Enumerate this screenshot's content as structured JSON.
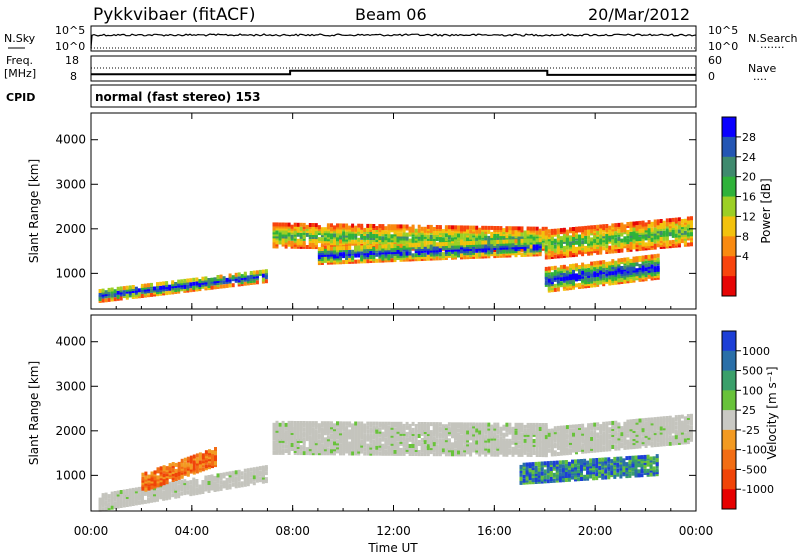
{
  "header": {
    "title": "Pykkvibaer (fitACF)",
    "beam": "Beam 06",
    "date": "20/Mar/2012"
  },
  "nsky_panel": {
    "left_label": "N.Sky",
    "left_ticks": [
      "10^5",
      "10^0"
    ],
    "right_ticks": [
      "10^5",
      "10^0"
    ],
    "right_label": "N.Search",
    "right_marker": "......."
  },
  "freq_panel": {
    "left_label_lines": [
      "Freq.",
      "[MHz]"
    ],
    "left_ticks": [
      "18",
      "8"
    ],
    "right_ticks": [
      "60",
      "0"
    ],
    "right_label": "Nave",
    "right_marker": "....",
    "freq_steps": [
      {
        "t": 0.0,
        "v": 10.5
      },
      {
        "t": 7.9,
        "v": 10.5
      },
      {
        "t": 7.9,
        "v": 12.0
      },
      {
        "t": 18.1,
        "v": 12.0
      },
      {
        "t": 18.1,
        "v": 10.2
      },
      {
        "t": 24.0,
        "v": 10.2
      }
    ]
  },
  "cpid_panel": {
    "label": "CPID",
    "text": "normal (fast stereo) 153"
  },
  "power_panel": {
    "ylabel": "Slant Range [km]",
    "yticks": [
      "4000",
      "3000",
      "2000",
      "1000"
    ],
    "colorbar_label": "Power [dB]",
    "colorbar_ticks": [
      "28",
      "24",
      "20",
      "16",
      "12",
      "8",
      "4"
    ],
    "colors": [
      "#0a00ff",
      "#2456b4",
      "#3f8a6e",
      "#2fb23a",
      "#9ccf25",
      "#f3c20d",
      "#f98a10",
      "#f8440d",
      "#e60505"
    ]
  },
  "velocity_panel": {
    "ylabel": "Slant Range [km]",
    "yticks": [
      "4000",
      "3000",
      "2000",
      "1000"
    ],
    "colorbar_label": "Velocity [m s⁻¹]",
    "colorbar_ticks": [
      "1000",
      "500",
      "100",
      "25",
      "-25",
      "-100",
      "-500",
      "-1000"
    ],
    "colors": [
      "#1d3fd6",
      "#2a6fa8",
      "#3a9f6a",
      "#68c23a",
      "#c9c9c4",
      "#f29a22",
      "#f26d14",
      "#f04408",
      "#e60000"
    ],
    "ground_scatter": "#c4c4bd"
  },
  "x_axis": {
    "xlabel": "Time UT",
    "ticks": [
      "00:00",
      "04:00",
      "08:00",
      "12:00",
      "16:00",
      "20:00",
      "00:00"
    ]
  },
  "chart_data": {
    "type": "heatmap",
    "title": "Pykkvibaer (fitACF)",
    "xlabel": "Time UT",
    "ylabel": "Slant Range [km]",
    "xlim": [
      0,
      24
    ],
    "ylim": [
      200,
      4600
    ],
    "power_colorbar": {
      "label": "Power [dB]",
      "range": [
        0,
        32
      ]
    },
    "velocity_colorbar": {
      "label": "Velocity [m s⁻¹]",
      "ticks": [
        1000,
        500,
        100,
        25,
        -25,
        -100,
        -500,
        -1000
      ]
    },
    "power_bands": [
      {
        "t0": 0.3,
        "t1": 7.0,
        "r0a": 550,
        "r0b": 1000,
        "width": 250,
        "level": "high"
      },
      {
        "t0": 7.2,
        "t1": 18.0,
        "r0a": 1900,
        "r0b": 1800,
        "width": 500,
        "level": "mid"
      },
      {
        "t0": 9.0,
        "t1": 17.8,
        "r0a": 1450,
        "r0b": 1650,
        "width": 350,
        "level": "high"
      },
      {
        "t0": 18.0,
        "t1": 23.8,
        "r0a": 1700,
        "r0b": 2000,
        "width": 600,
        "level": "mid"
      },
      {
        "t0": 18.0,
        "t1": 22.5,
        "r0a": 900,
        "r0b": 1200,
        "width": 500,
        "level": "high"
      }
    ],
    "velocity_bands": [
      {
        "t0": 0.3,
        "t1": 7.0,
        "r0a": 450,
        "r0b": 1100,
        "width": 350,
        "kind": "ground"
      },
      {
        "t0": 7.2,
        "t1": 18.0,
        "r0a": 1900,
        "r0b": 1850,
        "width": 700,
        "kind": "ground"
      },
      {
        "t0": 18.0,
        "t1": 23.8,
        "r0a": 1800,
        "r0b": 2100,
        "width": 600,
        "kind": "ground"
      },
      {
        "t0": 17.0,
        "t1": 22.5,
        "r0a": 1100,
        "r0b": 1300,
        "width": 450,
        "kind": "positive"
      },
      {
        "t0": 2.0,
        "t1": 5.0,
        "r0a": 900,
        "r0b": 1500,
        "width": 400,
        "kind": "negative"
      }
    ]
  }
}
